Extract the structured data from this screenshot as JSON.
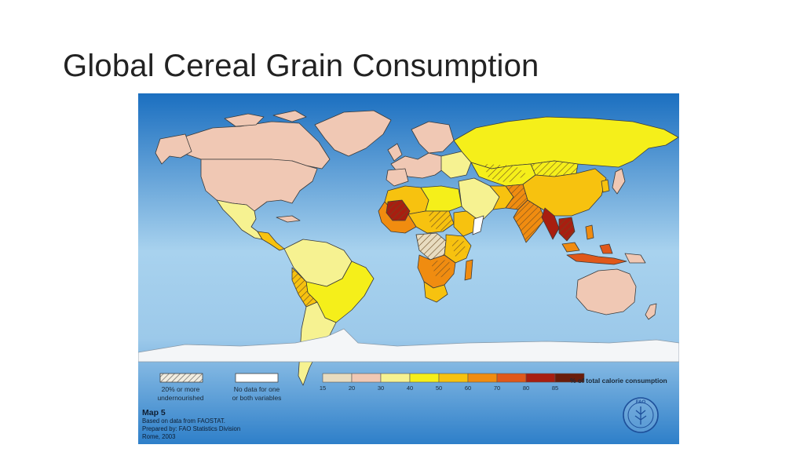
{
  "slide": {
    "title": "Global Cereal Grain Consumption"
  },
  "colors": {
    "ocean_top": "#1b6fc0",
    "ocean_mid": "#9cc9ea",
    "ocean_bottom": "#2e7fc9",
    "no_data": "#ffffff",
    "antarctica": "#f4f6f8"
  },
  "map": {
    "legend": {
      "undernourished_label": [
        "20% or more",
        "undernourished"
      ],
      "no_data_label": [
        "No data for one",
        "or both variables"
      ],
      "scale_caption": "% of total calorie consumption",
      "tick_labels": [
        "15",
        "20",
        "30",
        "40",
        "50",
        "60",
        "70",
        "80",
        "85"
      ],
      "bins": [
        {
          "range": "15–20",
          "color": "#e8dcc0"
        },
        {
          "range": "20–30",
          "color": "#f0c8b4"
        },
        {
          "range": "30–40",
          "color": "#f6f291"
        },
        {
          "range": "40–50",
          "color": "#f5ef1a"
        },
        {
          "range": "50–60",
          "color": "#f7c20f"
        },
        {
          "range": "60–70",
          "color": "#f08c10"
        },
        {
          "range": "70–80",
          "color": "#e0581a"
        },
        {
          "range": "80–85",
          "color": "#a81e10"
        },
        {
          "range": "85+",
          "color": "#6a1c0a"
        }
      ]
    },
    "info": {
      "map_number": "Map 5",
      "lines": [
        "Based on data from FAOSTAT.",
        "Prepared by: FAO Statistics Division",
        "Rome, 2003"
      ]
    },
    "logo_text": "FAO"
  }
}
